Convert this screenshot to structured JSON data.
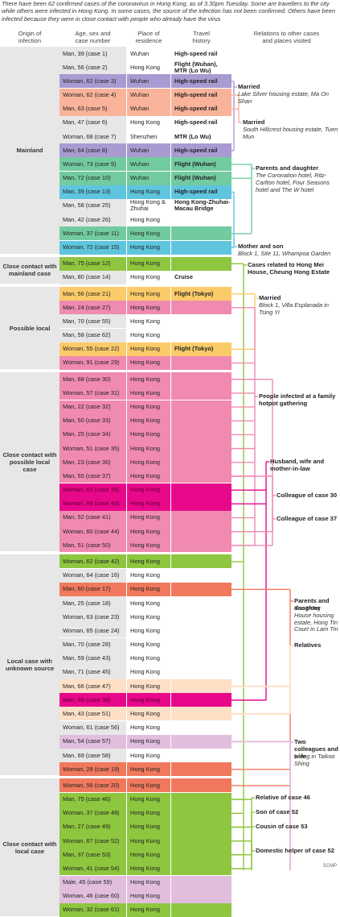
{
  "intro": "There have been 62 confirmed cases of the coronavirus in Hong Kong, as of 3.30pm Tuesday. Some are travellers to the city while others were infected in Hong Kong. In some cases, the source of the infection has not been confirmed. Others have been infected because they were in close contact with people who already have the virus",
  "headers": {
    "origin": "Origin of\ninfection",
    "case": "Age, sex and\ncase number",
    "place": "Place of\nresidence",
    "travel": "Travel\nhistory",
    "relations": "Relations to other cases\nand places visited"
  },
  "colors": {
    "pink": "#f08ab0",
    "green": "#8ec63f",
    "purple": "#a99bd2",
    "salmon": "#f9b39a",
    "teal": "#72cba0",
    "cyan": "#5fc5de",
    "yellow": "#fbcb6a",
    "magenta": "#e8088a",
    "orange_red": "#f0795d",
    "peach": "#fde0c6",
    "lilac": "#e2bedd",
    "grey_cell": "#e7e7e7"
  },
  "chart_data": {
    "type": "table",
    "columns": [
      "Origin of infection",
      "Age, sex and case number",
      "Place of residence",
      "Travel history",
      "Relations to other cases and places visited"
    ],
    "groups": [
      {
        "label": "Mainland",
        "rows": 15
      },
      {
        "label": "Close contact with mainland case",
        "rows": 2
      },
      {
        "label": "Possible local",
        "rows": 6
      },
      {
        "label": "Close contact with possible local case",
        "rows": 13
      },
      {
        "label": "Local case with unknown source",
        "rows": 16
      },
      {
        "label": "Close contact with local case",
        "rows": 10
      }
    ],
    "rows": [
      {
        "case": "Man, 39 (case 1)",
        "residence": "Wuhan",
        "travel": "High-speed rail",
        "color": ""
      },
      {
        "case": "Man, 56 (case 2)",
        "residence": "Hong Kong",
        "travel": "Flight (Wuhan), MTR (Lo Wu)",
        "color": ""
      },
      {
        "case": "Woman, 62 (case 3)",
        "residence": "Wuhan",
        "travel": "High-speed rail",
        "color": "purple"
      },
      {
        "case": "Woman, 62 (case 4)",
        "residence": "Wuhan",
        "travel": "High-speed rail",
        "color": "salmon"
      },
      {
        "case": "Man, 63 (case 5)",
        "residence": "Wuhan",
        "travel": "High-speed rail",
        "color": "salmon"
      },
      {
        "case": "Man, 47 (case 6)",
        "residence": "Hong Kong",
        "travel": "High-speed rail",
        "color": ""
      },
      {
        "case": "Woman, 68 (case 7)",
        "residence": "Shenzhen",
        "travel": "MTR (Lo Wu)",
        "color": ""
      },
      {
        "case": "Man, 64 (case 8)",
        "residence": "Wuhan",
        "travel": "High-speed rail",
        "color": "purple"
      },
      {
        "case": "Woman, 73 (case 9)",
        "residence": "Wuhan",
        "travel": "Flight (Wuhan)",
        "color": "teal"
      },
      {
        "case": "Man, 72 (case 10)",
        "residence": "Wuhan",
        "travel": "Flight (Wuhan)",
        "color": "teal"
      },
      {
        "case": "Man, 39 (case 13)",
        "residence": "Hong Kong",
        "travel": "High-speed rail",
        "color": "cyan"
      },
      {
        "case": "Man, 58 (case 25)",
        "residence": "Hong Kong & Zhuhai",
        "travel": "Hong Kong-Zhuhai-Macau Bridge",
        "color": ""
      },
      {
        "case": "Man, 42 (case 26)",
        "residence": "Hong Kong",
        "travel": "",
        "color": ""
      },
      {
        "case": "Woman, 37 (case 11)",
        "residence": "Hong Kong",
        "travel": "",
        "color": "teal"
      },
      {
        "case": "Woman, 72 (case 15)",
        "residence": "Hong Kong",
        "travel": "",
        "color": "cyan"
      },
      {
        "case": "Man, 75 (case 12)",
        "residence": "Hong Kong",
        "travel": "",
        "color": "green"
      },
      {
        "case": "Man, 80 (case 14)",
        "residence": "Hong Kong",
        "travel": "Cruise",
        "color": ""
      },
      {
        "case": "Man, 56 (case 21)",
        "residence": "Hong Kong",
        "travel": "Flight (Tokyo)",
        "color": "yellow"
      },
      {
        "case": "Man, 24 (case 27)",
        "residence": "Hong Kong",
        "travel": "",
        "color": "pink"
      },
      {
        "case": "Man, 70 (case 55)",
        "residence": "Hong Kong",
        "travel": "",
        "color": ""
      },
      {
        "case": "Man, 58 (case 62)",
        "residence": "Hong Kong",
        "travel": "",
        "color": ""
      },
      {
        "case": "Woman, 55 (case 22)",
        "residence": "Hong Kong",
        "travel": "Flight (Tokyo)",
        "color": "yellow"
      },
      {
        "case": "Woman, 91 (case 29)",
        "residence": "Hong Kong",
        "travel": "",
        "color": "pink"
      },
      {
        "case": "Man, 68 (case 30)",
        "residence": "Hong Kong",
        "travel": "",
        "color": "pink"
      },
      {
        "case": "Woman, 57 (case 31)",
        "residence": "Hong Kong",
        "travel": "",
        "color": "pink"
      },
      {
        "case": "Man, 22 (case 32)",
        "residence": "Hong Kong",
        "travel": "",
        "color": "pink"
      },
      {
        "case": "Man, 50 (case 33)",
        "residence": "Hong Kong",
        "travel": "",
        "color": "pink"
      },
      {
        "case": "Man, 25 (case 34)",
        "residence": "Hong Kong",
        "travel": "",
        "color": "pink"
      },
      {
        "case": "Woman, 51 (case 35)",
        "residence": "Hong Kong",
        "travel": "",
        "color": "pink"
      },
      {
        "case": "Man, 23 (case 36)",
        "residence": "Hong Kong",
        "travel": "",
        "color": "pink"
      },
      {
        "case": "Man, 55 (case 37)",
        "residence": "Hong Kong",
        "travel": "",
        "color": "pink"
      },
      {
        "case": "Woman, 63 (case 39)",
        "residence": "Hong Kong",
        "travel": "",
        "color": "magenta"
      },
      {
        "case": "Woman, 86 (case 40)",
        "residence": "Hong Kong",
        "travel": "",
        "color": "magenta"
      },
      {
        "case": "Man, 52 (case 41)",
        "residence": "Hong Kong",
        "travel": "",
        "color": "pink"
      },
      {
        "case": "Woman, 60 (case 44)",
        "residence": "Hong Kong",
        "travel": "",
        "color": "pink"
      },
      {
        "case": "Man, 51 (case 50)",
        "residence": "Hong Kong",
        "travel": "",
        "color": "pink"
      },
      {
        "case": "Woman, 62 (case 42)",
        "residence": "Hong Kong",
        "travel": "",
        "color": "green"
      },
      {
        "case": "Woman, 64 (case 16)",
        "residence": "Hong Kong",
        "travel": "",
        "color": ""
      },
      {
        "case": "Man, 60 (case 17)",
        "residence": "Hong Kong",
        "travel": "",
        "color": "orange_red"
      },
      {
        "case": "Man, 25 (case 18)",
        "residence": "Hong Kong",
        "travel": "",
        "color": ""
      },
      {
        "case": "Woman, 63 (case 23)",
        "residence": "Hong Kong",
        "travel": "",
        "color": ""
      },
      {
        "case": "Woman, 65 (case 24)",
        "residence": "Hong Kong",
        "travel": "",
        "color": ""
      },
      {
        "case": "Man, 70 (case 28)",
        "residence": "Hong Kong",
        "travel": "",
        "color": ""
      },
      {
        "case": "Man, 59 (case 43)",
        "residence": "Hong Kong",
        "travel": "",
        "color": ""
      },
      {
        "case": "Man, 71 (case 45)",
        "residence": "Hong Kong",
        "travel": "",
        "color": ""
      },
      {
        "case": "Man, 66 (case 47)",
        "residence": "Hong Kong",
        "travel": "",
        "color": "peach"
      },
      {
        "case": "Man, 69 (case 38)",
        "residence": "Hong Kong",
        "travel": "",
        "color": "magenta"
      },
      {
        "case": "Man, 43 (case 51)",
        "residence": "Hong Kong",
        "travel": "",
        "color": "peach"
      },
      {
        "case": "Woman, 61 (case 56)",
        "residence": "Hong Kong",
        "travel": "",
        "color": ""
      },
      {
        "case": "Man, 54 (case 57)",
        "residence": "Hong Kong",
        "travel": "",
        "color": "lilac"
      },
      {
        "case": "Man, 69 (case 58)",
        "residence": "Hong Kong",
        "travel": "",
        "color": ""
      },
      {
        "case": "Woman, 28 (case 19)",
        "residence": "Hong Kong",
        "travel": "",
        "color": "orange_red"
      },
      {
        "case": "Woman, 56 (case 20)",
        "residence": "Hong Kong",
        "travel": "",
        "color": "orange_red"
      },
      {
        "case": "Man, 75 (case 46)",
        "residence": "Hong Kong",
        "travel": "",
        "color": "green"
      },
      {
        "case": "Woman, 37 (case 48)",
        "residence": "Hong Kong",
        "travel": "",
        "color": "green"
      },
      {
        "case": "Man, 27 (case 49)",
        "residence": "Hong Kong",
        "travel": "",
        "color": "green"
      },
      {
        "case": "Woman, 67 (case 52)",
        "residence": "Hong Kong",
        "travel": "",
        "color": "green"
      },
      {
        "case": "Man, 37 (case 53)",
        "residence": "Hong Kong",
        "travel": "",
        "color": "green"
      },
      {
        "case": "Woman, 41 (case 54)",
        "residence": "Hong Kong",
        "travel": "",
        "color": "green"
      },
      {
        "case": "Male, 45 (case 59)",
        "residence": "Hong Kong",
        "travel": "",
        "color": "lilac"
      },
      {
        "case": "Woman, 46 (case 60)",
        "residence": "Hong Kong",
        "travel": "",
        "color": "lilac"
      },
      {
        "case": "Woman, 32 (case 61)",
        "residence": "Hong Kong",
        "travel": "",
        "color": "green"
      }
    ],
    "relations": [
      {
        "title": "Married",
        "subtitle": "Lake Silver housing estate, Ma On Shan",
        "color": "purple",
        "rows": [
          2,
          7
        ]
      },
      {
        "title": "Married",
        "subtitle": "South Hillcrest housing estate, Tuen Mun",
        "color": "salmon",
        "rows": [
          3,
          4
        ]
      },
      {
        "title": "Parents and daughter",
        "subtitle": "The Coronation hotel, Ritz-Carlton hotel, Four Seasons hotel and The W hotel",
        "color": "teal",
        "rows": [
          8,
          9,
          13
        ]
      },
      {
        "title": "Mother and son",
        "subtitle": "Block 1, Site 11, Whampoa Garden",
        "color": "cyan",
        "rows": [
          10,
          14
        ]
      },
      {
        "title": "Cases related to Hong Mei House, Cheung Hong Estate",
        "subtitle": "",
        "color": "green",
        "rows": [
          15,
          36,
          53,
          54,
          55,
          56,
          57,
          58,
          61
        ]
      },
      {
        "title": "Married",
        "subtitle": "Block 1, Villa Esplanada in Tsing Yi",
        "color": "yellow",
        "rows": [
          17,
          21
        ]
      },
      {
        "title": "People infected at a family hotpot gathering",
        "subtitle": "",
        "color": "pink",
        "rows": [
          18,
          22,
          23,
          24,
          25,
          26,
          27,
          28,
          29,
          30,
          33,
          34,
          35
        ]
      },
      {
        "title": "Husband, wife and mother-in-law",
        "subtitle": "",
        "color": "magenta",
        "rows": [
          31,
          32,
          46
        ]
      },
      {
        "title": "Colleague of case 30",
        "subtitle": "",
        "color": "pink",
        "rows": [
          23,
          34
        ]
      },
      {
        "title": "Colleague of case 37",
        "subtitle": "",
        "color": "pink",
        "rows": [
          30,
          35
        ]
      },
      {
        "title": "Parents and daughter",
        "subtitle": "Yue Hong House housing estate, Hong Tin Court in Lam Tin",
        "color": "orange_red",
        "rows": [
          38,
          51,
          52
        ]
      },
      {
        "title": "Relatives",
        "subtitle": "",
        "color": "peach",
        "rows": [
          45,
          47
        ]
      },
      {
        "title": "Two colleagues and wife",
        "subtitle": "Living in Taikoo Shing",
        "color": "lilac",
        "rows": [
          49,
          59,
          60
        ]
      },
      {
        "title": "Relative of case 46",
        "subtitle": "",
        "color": "green",
        "rows": [
          53,
          55
        ]
      },
      {
        "title": "Son of case 52",
        "subtitle": "",
        "color": "green",
        "rows": [
          56,
          57
        ]
      },
      {
        "title": "Cousin of case 53",
        "subtitle": "",
        "color": "green",
        "rows": [
          57,
          58
        ]
      },
      {
        "title": "Domestic helper of case 52",
        "subtitle": "",
        "color": "green",
        "rows": [
          56,
          61
        ]
      }
    ]
  },
  "credit": "SCMP"
}
